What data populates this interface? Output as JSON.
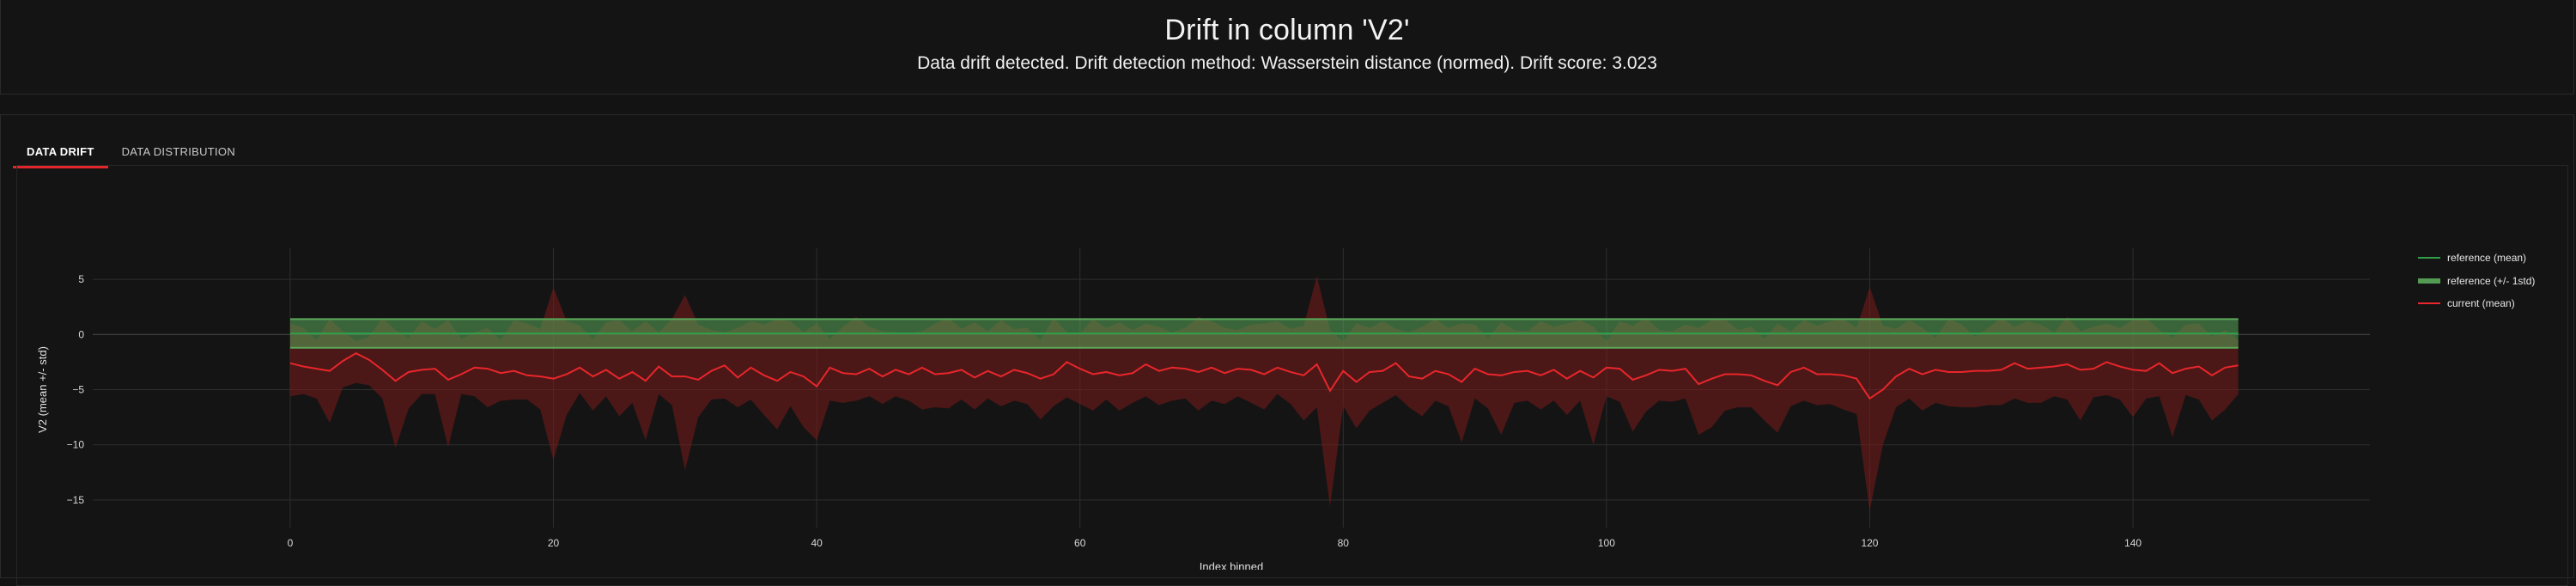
{
  "header": {
    "title": "Drift in column 'V2'",
    "subtitle": "Data drift detected. Drift detection method: Wasserstein distance (normed). Drift score: 3.023"
  },
  "tabs": [
    {
      "label": "DATA DRIFT",
      "active": true
    },
    {
      "label": "DATA DISTRIBUTION",
      "active": false
    }
  ],
  "colors": {
    "reference_line": "#2e9e4a",
    "reference_band": "#5aa85a",
    "current_line": "#e8262b",
    "current_band": "#7a1a1a"
  },
  "chart_data": {
    "type": "line",
    "xlabel": "Index binned",
    "ylabel": "V2 (mean +/- std)",
    "xlim": [
      -15,
      158
    ],
    "ylim": [
      -17.5,
      7.5
    ],
    "x_ticks": [
      "0",
      "20",
      "40",
      "60",
      "80",
      "100",
      "120",
      "140"
    ],
    "y_ticks": [
      "5",
      "0",
      "−5",
      "−10",
      "−15"
    ],
    "legend_position": "right",
    "legend": [
      "reference (mean)",
      "reference (+/- 1std)",
      "current (mean)"
    ],
    "reference": {
      "x_range": [
        0,
        148
      ],
      "mean": 0.1,
      "std": 1.3
    },
    "current": {
      "name": "current (mean)",
      "x": [
        0,
        1,
        2,
        3,
        4,
        5,
        6,
        7,
        8,
        9,
        10,
        11,
        12,
        13,
        14,
        15,
        16,
        17,
        18,
        19,
        20,
        21,
        22,
        23,
        24,
        25,
        26,
        27,
        28,
        29,
        30,
        31,
        32,
        33,
        34,
        35,
        36,
        37,
        38,
        39,
        40,
        41,
        42,
        43,
        44,
        45,
        46,
        47,
        48,
        49,
        50,
        51,
        52,
        53,
        54,
        55,
        56,
        57,
        58,
        59,
        60,
        61,
        62,
        63,
        64,
        65,
        66,
        67,
        68,
        69,
        70,
        71,
        72,
        73,
        74,
        75,
        76,
        77,
        78,
        79,
        80,
        81,
        82,
        83,
        84,
        85,
        86,
        87,
        88,
        89,
        90,
        91,
        92,
        93,
        94,
        95,
        96,
        97,
        98,
        99,
        100,
        101,
        102,
        103,
        104,
        105,
        106,
        107,
        108,
        109,
        110,
        111,
        112,
        113,
        114,
        115,
        116,
        117,
        118,
        119,
        120,
        121,
        122,
        123,
        124,
        125,
        126,
        127,
        128,
        129,
        130,
        131,
        132,
        133,
        134,
        135,
        136,
        137,
        138,
        139,
        140,
        141,
        142,
        143,
        144,
        145,
        146,
        147,
        148
      ],
      "mean": [
        -2.6,
        -2.9,
        -3.1,
        -3.3,
        -2.4,
        -1.7,
        -2.3,
        -3.2,
        -4.2,
        -3.4,
        -3.2,
        -3.1,
        -4.1,
        -3.6,
        -3.0,
        -3.1,
        -3.5,
        -3.3,
        -3.7,
        -3.8,
        -4.0,
        -3.6,
        -3.0,
        -3.8,
        -3.2,
        -4.0,
        -3.4,
        -4.2,
        -2.9,
        -3.8,
        -3.8,
        -4.1,
        -3.3,
        -2.8,
        -3.9,
        -3.0,
        -3.7,
        -4.2,
        -3.4,
        -3.8,
        -4.7,
        -3.0,
        -3.5,
        -3.6,
        -3.1,
        -3.8,
        -3.2,
        -3.6,
        -3.0,
        -3.6,
        -3.5,
        -3.2,
        -3.9,
        -3.3,
        -3.8,
        -3.2,
        -3.5,
        -4.0,
        -3.6,
        -2.5,
        -3.1,
        -3.6,
        -3.4,
        -3.7,
        -3.5,
        -2.7,
        -3.3,
        -3.0,
        -3.1,
        -3.4,
        -3.0,
        -3.5,
        -3.1,
        -3.2,
        -3.6,
        -3.0,
        -3.4,
        -3.7,
        -2.7,
        -5.1,
        -3.3,
        -4.3,
        -3.4,
        -3.3,
        -2.6,
        -3.8,
        -4.0,
        -3.3,
        -3.6,
        -4.3,
        -3.1,
        -3.6,
        -3.7,
        -3.4,
        -3.3,
        -3.7,
        -3.2,
        -4.0,
        -3.3,
        -3.9,
        -3.0,
        -3.1,
        -4.1,
        -3.7,
        -3.2,
        -3.3,
        -3.1,
        -4.5,
        -4.0,
        -3.6,
        -3.6,
        -3.7,
        -4.2,
        -4.6,
        -3.4,
        -3.0,
        -3.6,
        -3.6,
        -3.7,
        -4.0,
        -5.8,
        -5.0,
        -3.8,
        -3.1,
        -3.6,
        -3.2,
        -3.4,
        -3.4,
        -3.3,
        -3.3,
        -3.2,
        -2.6,
        -3.1,
        -3.0,
        -2.9,
        -2.7,
        -3.2,
        -3.1,
        -2.5,
        -2.9,
        -3.2,
        -3.3,
        -2.6,
        -3.5,
        -3.1,
        -2.9,
        -3.7,
        -3.0,
        -2.8
      ],
      "upper": [
        1.0,
        0.6,
        -0.5,
        1.4,
        0.3,
        -0.6,
        -0.2,
        1.5,
        0.4,
        -0.3,
        1.2,
        0.5,
        1.3,
        -0.4,
        0.2,
        0.6,
        -0.5,
        1.3,
        1.0,
        0.5,
        4.3,
        1.2,
        0.8,
        -0.4,
        1.1,
        1.3,
        0.3,
        1.2,
        0.2,
        1.4,
        3.6,
        0.9,
        0.4,
        0.2,
        0.6,
        1.2,
        0.9,
        1.4,
        1.2,
        0.2,
        1.0,
        -0.4,
        0.7,
        1.6,
        0.7,
        0.3,
        0.2,
        0.1,
        0.3,
        1.0,
        1.5,
        0.5,
        1.1,
        0.3,
        1.3,
        0.5,
        0.6,
        -0.5,
        1.5,
        0.2,
        0.1,
        1.4,
        0.6,
        1.1,
        0.4,
        1.0,
        0.7,
        0.2,
        0.6,
        1.6,
        1.2,
        0.6,
        0.4,
        0.9,
        1.0,
        1.2,
        0.5,
        0.8,
        5.3,
        0.4,
        -0.6,
        1.0,
        0.6,
        1.2,
        0.5,
        0.2,
        0.7,
        1.4,
        0.6,
        1.0,
        0.9,
        -0.3,
        1.1,
        0.4,
        0.3,
        1.2,
        0.7,
        1.0,
        1.3,
        0.7,
        -0.6,
        1.2,
        0.8,
        1.5,
        0.4,
        0.3,
        0.9,
        0.6,
        1.3,
        1.4,
        0.4,
        0.7,
        -0.4,
        1.0,
        0.3,
        1.3,
        0.8,
        1.2,
        1.4,
        0.6,
        4.3,
        0.8,
        0.5,
        1.3,
        0.6,
        -0.3,
        1.4,
        0.9,
        -0.2,
        0.6,
        1.5,
        0.7,
        1.2,
        0.9,
        0.2,
        1.6,
        0.3,
        0.7,
        1.0,
        0.6,
        1.3,
        1.5,
        0.4,
        -0.3,
        0.9,
        1.0,
        -0.2,
        0.4,
        -0.5
      ],
      "lower": [
        -5.6,
        -5.4,
        -5.8,
        -8.0,
        -4.8,
        -4.4,
        -4.6,
        -5.8,
        -10.3,
        -6.7,
        -5.4,
        -5.4,
        -10.2,
        -5.4,
        -5.6,
        -6.6,
        -6.0,
        -5.9,
        -5.9,
        -6.8,
        -11.4,
        -7.3,
        -5.3,
        -6.9,
        -5.6,
        -7.4,
        -6.2,
        -9.6,
        -5.4,
        -6.4,
        -12.3,
        -7.5,
        -5.9,
        -5.8,
        -6.6,
        -5.9,
        -7.3,
        -8.6,
        -6.5,
        -8.4,
        -9.6,
        -6.0,
        -6.2,
        -6.0,
        -5.6,
        -6.3,
        -5.6,
        -6.0,
        -6.8,
        -6.6,
        -6.7,
        -5.9,
        -6.8,
        -5.8,
        -6.5,
        -6.0,
        -6.3,
        -7.7,
        -6.5,
        -5.7,
        -6.3,
        -6.9,
        -5.9,
        -6.9,
        -6.2,
        -5.6,
        -6.4,
        -6.0,
        -5.8,
        -6.9,
        -6.0,
        -6.3,
        -5.6,
        -6.2,
        -6.8,
        -5.4,
        -6.3,
        -7.8,
        -6.6,
        -15.6,
        -6.5,
        -8.5,
        -6.9,
        -6.2,
        -5.5,
        -6.6,
        -7.4,
        -6.0,
        -6.5,
        -9.8,
        -5.8,
        -6.7,
        -9.1,
        -6.2,
        -6.0,
        -6.8,
        -6.0,
        -7.3,
        -6.0,
        -10.0,
        -5.6,
        -6.1,
        -8.8,
        -7.0,
        -6.0,
        -6.1,
        -5.8,
        -9.1,
        -8.4,
        -6.9,
        -6.6,
        -6.6,
        -7.8,
        -8.9,
        -6.5,
        -6.0,
        -6.4,
        -6.3,
        -6.8,
        -7.2,
        -16.0,
        -10.0,
        -6.6,
        -5.8,
        -6.9,
        -6.2,
        -6.5,
        -6.6,
        -6.6,
        -6.4,
        -6.4,
        -5.8,
        -6.2,
        -6.2,
        -5.6,
        -5.9,
        -7.8,
        -5.7,
        -5.5,
        -5.9,
        -7.5,
        -5.8,
        -5.6,
        -9.3,
        -5.5,
        -5.9,
        -7.8,
        -6.8,
        -5.4
      ]
    }
  }
}
